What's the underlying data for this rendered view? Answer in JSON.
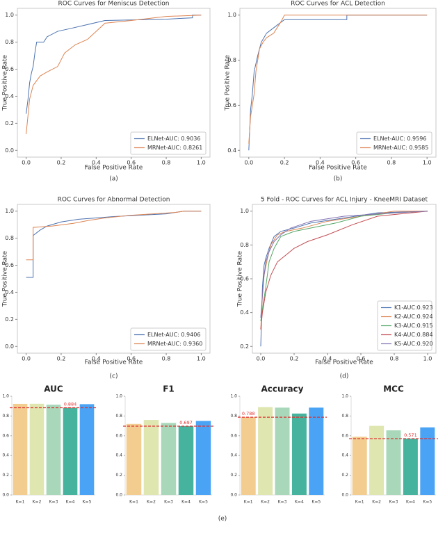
{
  "chart_data": [
    {
      "type": "line",
      "title": "ROC Curves for Meniscus Detection",
      "x_label": "False Positive Rate",
      "y_label": "True Positive Rate",
      "caption": "(a)",
      "xlim": [
        -0.05,
        1.05
      ],
      "ylim": [
        -0.05,
        1.05
      ],
      "xticks": [
        {
          "value": 0,
          "label": "0.0"
        },
        0.2,
        0.4,
        0.6,
        0.8,
        {
          "value": 1,
          "label": "1.0"
        }
      ],
      "yticks": [
        {
          "value": 0,
          "label": "0.0"
        },
        0.2,
        0.4,
        0.6,
        0.8,
        {
          "value": 1,
          "label": "1.0"
        }
      ],
      "legend": "lower right",
      "series": [
        {
          "name": "ELNet-AUC: 0.9036",
          "color": "#4c72b0",
          "x": [
            0,
            0.01,
            0.02,
            0.03,
            0.04,
            0.05,
            0.06,
            0.1,
            0.12,
            0.18,
            0.25,
            0.35,
            0.45,
            0.8,
            0.95,
            0.95,
            1
          ],
          "values": [
            0.27,
            0.37,
            0.5,
            0.57,
            0.62,
            0.72,
            0.8,
            0.8,
            0.84,
            0.88,
            0.9,
            0.93,
            0.96,
            0.97,
            0.98,
            1,
            1
          ]
        },
        {
          "name": "MRNet-AUC: 0.8261",
          "color": "#dd8452",
          "x": [
            0,
            0.01,
            0.02,
            0.04,
            0.08,
            0.12,
            0.18,
            0.2,
            0.22,
            0.28,
            0.35,
            0.4,
            0.45,
            0.6,
            0.8,
            1
          ],
          "values": [
            0.12,
            0.25,
            0.38,
            0.48,
            0.55,
            0.58,
            0.62,
            0.67,
            0.72,
            0.78,
            0.82,
            0.88,
            0.94,
            0.96,
            0.99,
            1
          ]
        }
      ]
    },
    {
      "type": "line",
      "title": "ROC Curves for ACL Detection",
      "x_label": "False Positive Rate",
      "y_label": "True Positive Rate",
      "caption": "(b)",
      "xlim": [
        -0.05,
        1.05
      ],
      "ylim": [
        0.37,
        1.03
      ],
      "xticks": [
        {
          "value": 0,
          "label": "0.0"
        },
        0.2,
        0.4,
        0.6,
        0.8,
        {
          "value": 1,
          "label": "1.0"
        }
      ],
      "yticks": [
        0.4,
        0.6,
        0.8,
        {
          "value": 1,
          "label": "1.0"
        }
      ],
      "legend": "lower right",
      "series": [
        {
          "name": "ELNet-AUC: 0.9596",
          "color": "#4c72b0",
          "x": [
            0,
            0.01,
            0.02,
            0.03,
            0.05,
            0.07,
            0.1,
            0.15,
            0.2,
            0.55,
            0.55,
            1
          ],
          "values": [
            0.4,
            0.58,
            0.65,
            0.75,
            0.82,
            0.88,
            0.92,
            0.95,
            0.98,
            0.98,
            1,
            1
          ]
        },
        {
          "name": "MRNet-AUC: 0.9585",
          "color": "#dd8452",
          "x": [
            0,
            0.01,
            0.03,
            0.04,
            0.06,
            0.08,
            0.1,
            0.14,
            0.18,
            0.2,
            1
          ],
          "values": [
            0.43,
            0.55,
            0.65,
            0.75,
            0.85,
            0.88,
            0.9,
            0.92,
            0.97,
            1,
            1
          ]
        }
      ]
    },
    {
      "type": "line",
      "title": "ROC Curves for Abnormal Detection",
      "x_label": "False Positive Rate",
      "y_label": "True Positive Rate",
      "caption": "(c)",
      "xlim": [
        -0.05,
        1.05
      ],
      "ylim": [
        -0.05,
        1.05
      ],
      "xticks": [
        {
          "value": 0,
          "label": "0.0"
        },
        0.2,
        0.4,
        0.6,
        0.8,
        {
          "value": 1,
          "label": "1.0"
        }
      ],
      "yticks": [
        {
          "value": 0,
          "label": "0.0"
        },
        0.2,
        0.4,
        0.6,
        0.8,
        {
          "value": 1,
          "label": "1.0"
        }
      ],
      "legend": "lower right",
      "series": [
        {
          "name": "ELNet-AUC: 0.9406",
          "color": "#4c72b0",
          "x": [
            0,
            0.04,
            0.04,
            0.08,
            0.12,
            0.2,
            0.3,
            0.5,
            0.8,
            0.9,
            1
          ],
          "values": [
            0.51,
            0.51,
            0.82,
            0.86,
            0.89,
            0.92,
            0.94,
            0.96,
            0.98,
            1,
            1
          ]
        },
        {
          "name": "MRNet-AUC: 0.9360",
          "color": "#dd8452",
          "x": [
            0,
            0.04,
            0.04,
            0.15,
            0.27,
            0.35,
            0.45,
            0.6,
            0.85,
            0.9,
            1
          ],
          "values": [
            0.64,
            0.64,
            0.88,
            0.89,
            0.91,
            0.93,
            0.95,
            0.97,
            0.99,
            1,
            1
          ]
        }
      ]
    },
    {
      "type": "line",
      "title": "5 Fold - ROC Curves for ACL Injury - KneeMRI Dataset",
      "x_label": "False Positive Rate",
      "y_label": "True Positive Rate",
      "caption": "(d)",
      "xlim": [
        -0.05,
        1.05
      ],
      "ylim": [
        0.16,
        1.04
      ],
      "xticks": [
        {
          "value": 0,
          "label": "0.0"
        },
        0.2,
        0.4,
        0.6,
        0.8,
        {
          "value": 1,
          "label": "1.0"
        }
      ],
      "yticks": [
        0.2,
        0.4,
        0.6,
        0.8,
        {
          "value": 1,
          "label": "1.0"
        }
      ],
      "legend": "lower right",
      "series": [
        {
          "name": "K1-AUC:0.923",
          "color": "#4c72b0",
          "x": [
            0,
            0.01,
            0.02,
            0.03,
            0.05,
            0.08,
            0.12,
            0.2,
            0.3,
            0.5,
            0.7,
            1
          ],
          "values": [
            0.2,
            0.55,
            0.68,
            0.72,
            0.78,
            0.85,
            0.88,
            0.9,
            0.93,
            0.96,
            0.99,
            1
          ]
        },
        {
          "name": "K2-AUC:0.924",
          "color": "#dd8452",
          "x": [
            0,
            0.01,
            0.02,
            0.04,
            0.06,
            0.1,
            0.15,
            0.25,
            0.4,
            0.6,
            0.8,
            1
          ],
          "values": [
            0.3,
            0.5,
            0.62,
            0.72,
            0.8,
            0.86,
            0.88,
            0.9,
            0.94,
            0.97,
            1,
            1
          ]
        },
        {
          "name": "K3-AUC:0.915",
          "color": "#55a868",
          "x": [
            0,
            0.01,
            0.03,
            0.05,
            0.08,
            0.12,
            0.2,
            0.3,
            0.45,
            0.6,
            0.8,
            1
          ],
          "values": [
            0.35,
            0.42,
            0.55,
            0.7,
            0.78,
            0.85,
            0.88,
            0.9,
            0.93,
            0.97,
            0.99,
            1
          ]
        },
        {
          "name": "K4-AUC:0.884",
          "color": "#c44e52",
          "x": [
            0,
            0.01,
            0.03,
            0.06,
            0.1,
            0.15,
            0.2,
            0.28,
            0.4,
            0.55,
            0.7,
            1
          ],
          "values": [
            0.3,
            0.4,
            0.52,
            0.62,
            0.7,
            0.74,
            0.78,
            0.82,
            0.86,
            0.92,
            0.97,
            1
          ]
        },
        {
          "name": "K5-AUC:0.920",
          "color": "#8172b3",
          "x": [
            0,
            0.01,
            0.02,
            0.03,
            0.05,
            0.08,
            0.12,
            0.18,
            0.3,
            0.5,
            0.8,
            1
          ],
          "values": [
            0.37,
            0.5,
            0.62,
            0.7,
            0.76,
            0.82,
            0.86,
            0.9,
            0.94,
            0.97,
            0.99,
            1
          ]
        }
      ]
    },
    {
      "type": "bar",
      "title": "AUC",
      "categories": [
        "K=1",
        "K=2",
        "K=3",
        "K=4",
        "K=5"
      ],
      "values": [
        0.923,
        0.924,
        0.915,
        0.884,
        0.92
      ],
      "colors": [
        "#f2cd8f",
        "#dfe6b0",
        "#a8d8b9",
        "#45b39d",
        "#4aa3f5"
      ],
      "reference_line": 0.884,
      "reference_color": "#e03030",
      "ylim": [
        0,
        1
      ],
      "yticks": [
        {
          "value": 0,
          "label": "0.0"
        },
        0.2,
        0.4,
        0.6,
        0.8,
        {
          "value": 1,
          "label": "1.0"
        }
      ]
    },
    {
      "type": "bar",
      "title": "F1",
      "categories": [
        "K=1",
        "K=2",
        "K=3",
        "K=4",
        "K=5"
      ],
      "values": [
        0.72,
        0.76,
        0.73,
        0.697,
        0.75
      ],
      "colors": [
        "#f2cd8f",
        "#dfe6b0",
        "#a8d8b9",
        "#45b39d",
        "#4aa3f5"
      ],
      "reference_line": 0.697,
      "reference_color": "#e03030",
      "ylim": [
        0,
        1
      ],
      "yticks": [
        {
          "value": 0,
          "label": "0.0"
        },
        0.2,
        0.4,
        0.6,
        0.8,
        {
          "value": 1,
          "label": "1.0"
        }
      ]
    },
    {
      "type": "bar",
      "title": "Accuracy",
      "categories": [
        "K=1",
        "K=2",
        "K=3",
        "K=4",
        "K=5"
      ],
      "values": [
        0.788,
        0.89,
        0.885,
        0.825,
        0.885
      ],
      "colors": [
        "#f2cd8f",
        "#dfe6b0",
        "#a8d8b9",
        "#45b39d",
        "#4aa3f5"
      ],
      "reference_line": 0.788,
      "reference_color": "#e03030",
      "ylim": [
        0,
        1
      ],
      "yticks": [
        {
          "value": 0,
          "label": "0.0"
        },
        0.2,
        0.4,
        0.6,
        0.8,
        {
          "value": 1,
          "label": "1.0"
        }
      ]
    },
    {
      "type": "bar",
      "title": "MCC",
      "categories": [
        "K=1",
        "K=2",
        "K=3",
        "K=4",
        "K=5"
      ],
      "values": [
        0.59,
        0.7,
        0.655,
        0.571,
        0.685
      ],
      "colors": [
        "#f2cd8f",
        "#dfe6b0",
        "#a8d8b9",
        "#45b39d",
        "#4aa3f5"
      ],
      "reference_line": 0.571,
      "reference_color": "#e03030",
      "ylim": [
        0,
        1
      ],
      "yticks": [
        {
          "value": 0,
          "label": "0.0"
        },
        0.2,
        0.4,
        0.6,
        0.8,
        {
          "value": 1,
          "label": "1.0"
        }
      ]
    }
  ],
  "group_caption": "(e)"
}
